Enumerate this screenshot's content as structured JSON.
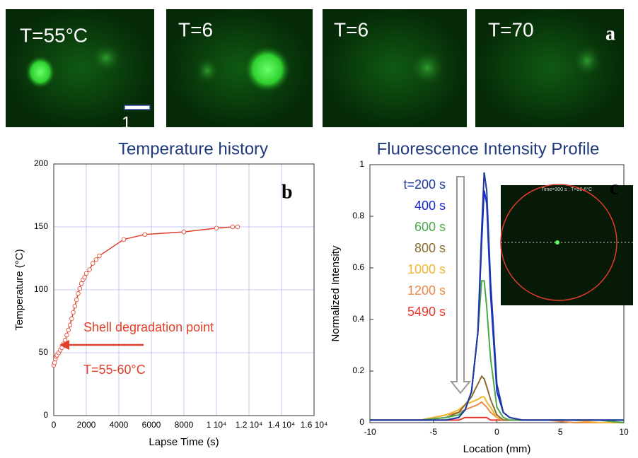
{
  "panel_a": {
    "labels": [
      "T=55°C",
      "T=6",
      "T=6",
      "T=70"
    ],
    "letter": "a",
    "scale_label": "1"
  },
  "chart_data": [
    {
      "type": "line",
      "title": "Temperature history",
      "x_label": "Lapse Time (s)",
      "y_label": "Temperature (°C)",
      "annotations": [
        "Shell degradation point",
        "T=55-60°C"
      ],
      "panel_label": "b",
      "color": "#e0402a",
      "marker": true,
      "grid": true,
      "x": [
        0,
        50,
        100,
        150,
        200,
        300,
        400,
        500,
        600,
        700,
        800,
        900,
        1000,
        1100,
        1200,
        1300,
        1400,
        1500,
        1600,
        1700,
        1800,
        1900,
        2000,
        2200,
        2400,
        2600,
        2800,
        4300,
        5600,
        8000,
        10000,
        11000,
        11300
      ],
      "values": [
        40,
        42,
        45,
        47,
        48,
        50,
        52,
        54,
        57,
        60,
        64,
        68,
        72,
        77,
        82,
        87,
        92,
        97,
        101,
        105,
        108,
        110,
        113,
        116,
        121,
        124,
        127,
        140,
        144,
        146,
        149,
        150,
        150
      ],
      "xlim": [
        0,
        16000
      ],
      "xticks": [
        0,
        2000,
        4000,
        6000,
        8000,
        {
          "value": 10000,
          "label": "1 10⁴"
        },
        {
          "value": 12000,
          "label": "1.2 10⁴"
        },
        {
          "value": 14000,
          "label": "1.4 10⁴"
        },
        {
          "value": 16000,
          "label": "1.6 10⁴"
        }
      ],
      "ylim": [
        0,
        200
      ],
      "yticks": [
        0,
        50,
        100,
        150,
        200
      ]
    },
    {
      "type": "multiline",
      "title": "Fluorescence Intensity Profile",
      "x_label": "Location (mm)",
      "y_label": "Normalized Intensity",
      "panel_label": "c",
      "inset_caption": "Time=300 s : T=50.6°C",
      "grid": false,
      "x": [
        -10,
        -8,
        -6,
        -4,
        -3,
        -2.5,
        -2,
        -1.5,
        -1.2,
        -1,
        -0.8,
        -0.5,
        0,
        0.5,
        1,
        2,
        4,
        6,
        8,
        10
      ],
      "series": [
        {
          "name": "t=200 s",
          "color": "#1f3a9e",
          "values": [
            0.01,
            0.01,
            0.01,
            0.01,
            0.02,
            0.05,
            0.12,
            0.35,
            0.75,
            0.97,
            0.9,
            0.55,
            0.15,
            0.04,
            0.02,
            0.01,
            0.01,
            0.01,
            0.01,
            0.01
          ]
        },
        {
          "name": "400 s",
          "color": "#1428d8",
          "values": [
            0.01,
            0.01,
            0.01,
            0.01,
            0.02,
            0.05,
            0.12,
            0.35,
            0.7,
            0.9,
            0.85,
            0.5,
            0.12,
            0.04,
            0.02,
            0.01,
            0.01,
            0.01,
            0.01,
            0.01
          ]
        },
        {
          "name": "600 s",
          "color": "#4aa84a",
          "values": [
            0.01,
            0.01,
            0.01,
            0.02,
            0.03,
            0.05,
            0.12,
            0.35,
            0.55,
            0.55,
            0.45,
            0.25,
            0.06,
            0.02,
            0.01,
            0.01,
            0.01,
            0.01,
            0.01,
            0
          ]
        },
        {
          "name": "800 s",
          "color": "#8b6a2e",
          "values": [
            0.01,
            0.01,
            0.01,
            0.02,
            0.04,
            0.07,
            0.1,
            0.15,
            0.18,
            0.17,
            0.14,
            0.09,
            0.03,
            0.01,
            0.01,
            0.01,
            0.01,
            0.01,
            0.01,
            0
          ]
        },
        {
          "name": "1000 s",
          "color": "#f2b632",
          "values": [
            0.01,
            0.01,
            0.01,
            0.03,
            0.05,
            0.07,
            0.08,
            0.09,
            0.1,
            0.1,
            0.08,
            0.06,
            0.02,
            0.01,
            0.01,
            0.01,
            0.01,
            0.01,
            0,
            0
          ]
        },
        {
          "name": "1200 s",
          "color": "#ec8a4a",
          "values": [
            0.01,
            0.01,
            0.01,
            0.03,
            0.04,
            0.05,
            0.06,
            0.07,
            0.08,
            0.07,
            0.06,
            0.04,
            0.02,
            0.01,
            0.01,
            0.01,
            0.01,
            0,
            0,
            0
          ]
        },
        {
          "name": "5490 s",
          "color": "#e8382e",
          "values": [
            0.01,
            0.01,
            0.01,
            0.01,
            0.01,
            0.02,
            0.02,
            0.02,
            0.02,
            0.02,
            0.02,
            0.01,
            0.01,
            0.01,
            0.01,
            0.01,
            0.01,
            0.01,
            0.01,
            0.01
          ]
        }
      ],
      "xlim": [
        -10,
        10
      ],
      "xticks": [
        -10,
        -5,
        0,
        5,
        10
      ],
      "ylim": [
        0,
        1
      ],
      "yticks": [
        0,
        0.2,
        0.4,
        0.6,
        0.8,
        1
      ]
    }
  ]
}
